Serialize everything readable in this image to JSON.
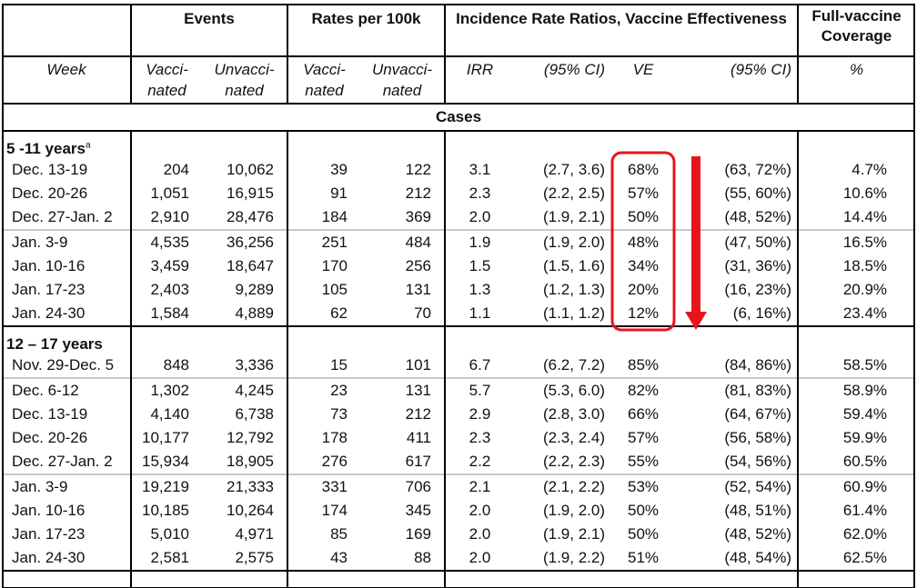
{
  "headers": {
    "events": "Events",
    "rates": "Rates per 100k",
    "irr_ve": "Incidence Rate Ratios, Vaccine Effectiveness",
    "coverage_line1": "Full-vaccine",
    "coverage_line2": "Coverage"
  },
  "subheaders": {
    "week": "Week",
    "vacc1": "Vacci-",
    "vacc2": "nated",
    "unvacc1": "Unvacci-",
    "unvacc2": "nated",
    "irr": "IRR",
    "ci": "(95% CI)",
    "ve": "VE",
    "ve_ci": "(95% CI)",
    "pct": "%"
  },
  "section": "Cases",
  "groups": [
    {
      "label": "5 -11 years",
      "sup": "a",
      "rows": [
        {
          "week": "Dec. 13-19",
          "ev_v": "204",
          "ev_u": "10,062",
          "r_v": "39",
          "r_u": "122",
          "irr": "3.1",
          "ci": "(2.7, 3.6)",
          "ve": "68%",
          "ve_ci": "(63, 72%)",
          "cov": "4.7%"
        },
        {
          "week": "Dec. 20-26",
          "ev_v": "1,051",
          "ev_u": "16,915",
          "r_v": "91",
          "r_u": "212",
          "irr": "2.3",
          "ci": "(2.2, 2.5)",
          "ve": "57%",
          "ve_ci": "(55, 60%)",
          "cov": "10.6%"
        },
        {
          "week": "Dec. 27-Jan. 2",
          "ev_v": "2,910",
          "ev_u": "28,476",
          "r_v": "184",
          "r_u": "369",
          "irr": "2.0",
          "ci": "(1.9, 2.1)",
          "ve": "50%",
          "ve_ci": "(48, 52%)",
          "cov": "14.4%"
        },
        {
          "week": "Jan. 3-9",
          "ev_v": "4,535",
          "ev_u": "36,256",
          "r_v": "251",
          "r_u": "484",
          "irr": "1.9",
          "ci": "(1.9, 2.0)",
          "ve": "48%",
          "ve_ci": "(47, 50%)",
          "cov": "16.5%"
        },
        {
          "week": "Jan. 10-16",
          "ev_v": "3,459",
          "ev_u": "18,647",
          "r_v": "170",
          "r_u": "256",
          "irr": "1.5",
          "ci": "(1.5, 1.6)",
          "ve": "34%",
          "ve_ci": "(31, 36%)",
          "cov": "18.5%"
        },
        {
          "week": "Jan. 17-23",
          "ev_v": "2,403",
          "ev_u": "9,289",
          "r_v": "105",
          "r_u": "131",
          "irr": "1.3",
          "ci": "(1.2, 1.3)",
          "ve": "20%",
          "ve_ci": "(16, 23%)",
          "cov": "20.9%"
        },
        {
          "week": "Jan. 24-30",
          "ev_v": "1,584",
          "ev_u": "4,889",
          "r_v": "62",
          "r_u": "70",
          "irr": "1.1",
          "ci": "(1.1, 1.2)",
          "ve": "12%",
          "ve_ci": "(6, 16%)",
          "cov": "23.4%"
        }
      ]
    },
    {
      "label": "12 – 17 years",
      "sup": "",
      "rows": [
        {
          "week": "Nov. 29-Dec. 5",
          "ev_v": "848",
          "ev_u": "3,336",
          "r_v": "15",
          "r_u": "101",
          "irr": "6.7",
          "ci": "(6.2, 7.2)",
          "ve": "85%",
          "ve_ci": "(84, 86%)",
          "cov": "58.5%"
        },
        {
          "week": "Dec. 6-12",
          "ev_v": "1,302",
          "ev_u": "4,245",
          "r_v": "23",
          "r_u": "131",
          "irr": "5.7",
          "ci": "(5.3, 6.0)",
          "ve": "82%",
          "ve_ci": "(81, 83%)",
          "cov": "58.9%"
        },
        {
          "week": "Dec. 13-19",
          "ev_v": "4,140",
          "ev_u": "6,738",
          "r_v": "73",
          "r_u": "212",
          "irr": "2.9",
          "ci": "(2.8, 3.0)",
          "ve": "66%",
          "ve_ci": "(64, 67%)",
          "cov": "59.4%"
        },
        {
          "week": "Dec. 20-26",
          "ev_v": "10,177",
          "ev_u": "12,792",
          "r_v": "178",
          "r_u": "411",
          "irr": "2.3",
          "ci": "(2.3, 2.4)",
          "ve": "57%",
          "ve_ci": "(56, 58%)",
          "cov": "59.9%"
        },
        {
          "week": "Dec. 27-Jan. 2",
          "ev_v": "15,934",
          "ev_u": "18,905",
          "r_v": "276",
          "r_u": "617",
          "irr": "2.2",
          "ci": "(2.2, 2.3)",
          "ve": "55%",
          "ve_ci": "(54, 56%)",
          "cov": "60.5%"
        },
        {
          "week": "Jan. 3-9",
          "ev_v": "19,219",
          "ev_u": "21,333",
          "r_v": "331",
          "r_u": "706",
          "irr": "2.1",
          "ci": "(2.1, 2.2)",
          "ve": "53%",
          "ve_ci": "(52, 54%)",
          "cov": "60.9%"
        },
        {
          "week": "Jan. 10-16",
          "ev_v": "10,185",
          "ev_u": "10,264",
          "r_v": "174",
          "r_u": "345",
          "irr": "2.0",
          "ci": "(1.9, 2.0)",
          "ve": "50%",
          "ve_ci": "(48, 51%)",
          "cov": "61.4%"
        },
        {
          "week": "Jan. 17-23",
          "ev_v": "5,010",
          "ev_u": "4,971",
          "r_v": "85",
          "r_u": "169",
          "irr": "2.0",
          "ci": "(1.9, 2.1)",
          "ve": "50%",
          "ve_ci": "(48, 52%)",
          "cov": "62.0%"
        },
        {
          "week": "Jan. 24-30",
          "ev_v": "2,581",
          "ev_u": "2,575",
          "r_v": "43",
          "r_u": "88",
          "irr": "2.0",
          "ci": "(1.9, 2.2)",
          "ve": "51%",
          "ve_ci": "(48, 54%)",
          "cov": "62.5%"
        }
      ]
    }
  ],
  "annotation": {
    "color": "#e8141c",
    "highlight": "red-rounded-box-around-ve-5-11",
    "arrow": "red-down-arrow"
  }
}
